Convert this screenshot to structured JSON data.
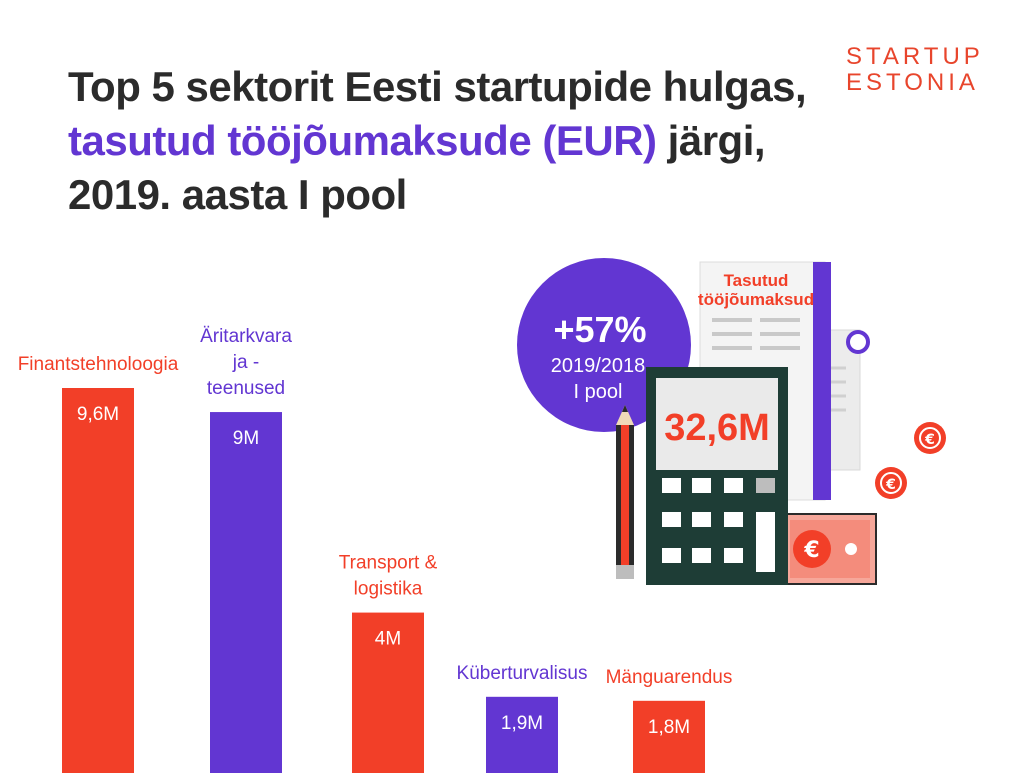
{
  "title": {
    "part1": "Top 5 sektorit Eesti startupide hulgas, ",
    "highlight": "tasutud tööjõumaksude (EUR)",
    "part2": " järgi, 2019. aasta I pool"
  },
  "logo": {
    "line1": "STARTUP",
    "line2": "ESTONIA"
  },
  "colors": {
    "red": "#f23f28",
    "purple": "#6236d2",
    "dark": "#2b2b2b"
  },
  "illustration": {
    "growth": "+57%",
    "period_line1": "2019/2018",
    "period_line2": "I pool",
    "receipt_line1": "Tasutud",
    "receipt_line2": "tööjõumaksud",
    "total": "32,6M",
    "coin_symbol": "€"
  },
  "chart_data": {
    "type": "bar",
    "title": "Top 5 sektorit Eesti startupide hulgas, tasutud tööjõumaksude (EUR) järgi, 2019. aasta I pool",
    "categories": [
      "Finantstehnoloogia",
      "Äritarkvara ja - teenused",
      "Transport & logistika",
      "Küberturvalisus",
      "Mänguarendus"
    ],
    "category_lines": [
      [
        "Finantstehnoloogia"
      ],
      [
        "Äritarkvara",
        "ja -",
        "teenused"
      ],
      [
        "Transport &",
        "logistika"
      ],
      [
        "Küberturvalisus"
      ],
      [
        "Mänguarendus"
      ]
    ],
    "values": [
      9.6,
      9,
      4,
      1.9,
      1.8
    ],
    "value_labels": [
      "9,6M",
      "9M",
      "4M",
      "1,9M",
      "1,8M"
    ],
    "bar_colors": [
      "#f23f28",
      "#6236d2",
      "#f23f28",
      "#6236d2",
      "#f23f28"
    ],
    "unit": "M EUR",
    "ylim": [
      0,
      9.6
    ],
    "grid": false,
    "legend": "none"
  }
}
